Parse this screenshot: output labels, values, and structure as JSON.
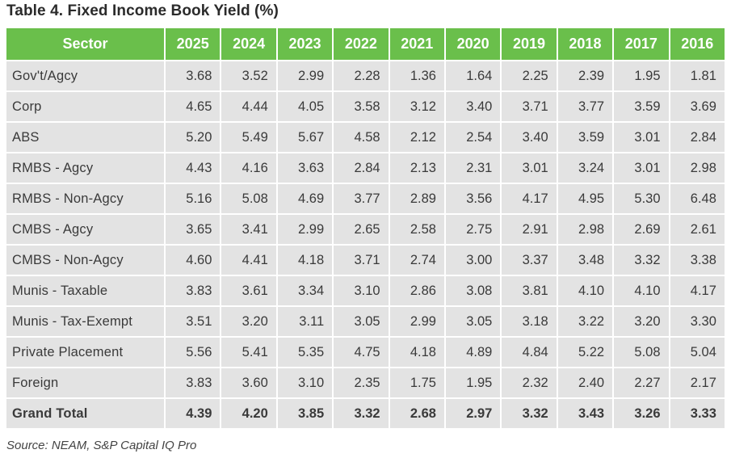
{
  "title": "Table 4. Fixed Income Book Yield (%)",
  "table": {
    "header_sector": "Sector",
    "years": [
      "2025",
      "2024",
      "2023",
      "2022",
      "2021",
      "2020",
      "2019",
      "2018",
      "2017",
      "2016"
    ],
    "rows": [
      {
        "sector": "Gov't/Agcy",
        "values": [
          "3.68",
          "3.52",
          "2.99",
          "2.28",
          "1.36",
          "1.64",
          "2.25",
          "2.39",
          "1.95",
          "1.81"
        ]
      },
      {
        "sector": "Corp",
        "values": [
          "4.65",
          "4.44",
          "4.05",
          "3.58",
          "3.12",
          "3.40",
          "3.71",
          "3.77",
          "3.59",
          "3.69"
        ]
      },
      {
        "sector": "ABS",
        "values": [
          "5.20",
          "5.49",
          "5.67",
          "4.58",
          "2.12",
          "2.54",
          "3.40",
          "3.59",
          "3.01",
          "2.84"
        ]
      },
      {
        "sector": "RMBS - Agcy",
        "values": [
          "4.43",
          "4.16",
          "3.63",
          "2.84",
          "2.13",
          "2.31",
          "3.01",
          "3.24",
          "3.01",
          "2.98"
        ]
      },
      {
        "sector": "RMBS - Non-Agcy",
        "values": [
          "5.16",
          "5.08",
          "4.69",
          "3.77",
          "2.89",
          "3.56",
          "4.17",
          "4.95",
          "5.30",
          "6.48"
        ]
      },
      {
        "sector": "CMBS - Agcy",
        "values": [
          "3.65",
          "3.41",
          "2.99",
          "2.65",
          "2.58",
          "2.75",
          "2.91",
          "2.98",
          "2.69",
          "2.61"
        ]
      },
      {
        "sector": "CMBS - Non-Agcy",
        "values": [
          "4.60",
          "4.41",
          "4.18",
          "3.71",
          "2.74",
          "3.00",
          "3.37",
          "3.48",
          "3.32",
          "3.38"
        ]
      },
      {
        "sector": "Munis - Taxable",
        "values": [
          "3.83",
          "3.61",
          "3.34",
          "3.10",
          "2.86",
          "3.08",
          "3.81",
          "4.10",
          "4.10",
          "4.17"
        ]
      },
      {
        "sector": "Munis - Tax-Exempt",
        "values": [
          "3.51",
          "3.20",
          "3.11",
          "3.05",
          "2.99",
          "3.05",
          "3.18",
          "3.22",
          "3.20",
          "3.30"
        ]
      },
      {
        "sector": "Private Placement",
        "values": [
          "5.56",
          "5.41",
          "5.35",
          "4.75",
          "4.18",
          "4.89",
          "4.84",
          "5.22",
          "5.08",
          "5.04"
        ]
      },
      {
        "sector": "Foreign",
        "values": [
          "3.83",
          "3.60",
          "3.10",
          "2.35",
          "1.75",
          "1.95",
          "2.32",
          "2.40",
          "2.27",
          "2.17"
        ]
      }
    ],
    "total": {
      "sector": "Grand Total",
      "values": [
        "4.39",
        "4.20",
        "3.85",
        "3.32",
        "2.68",
        "2.97",
        "3.32",
        "3.43",
        "3.26",
        "3.33"
      ]
    }
  },
  "source": "Source: NEAM, S&P Capital IQ Pro",
  "colors": {
    "header_bg": "#6abf4b",
    "cell_bg": "#e3e3e3"
  }
}
